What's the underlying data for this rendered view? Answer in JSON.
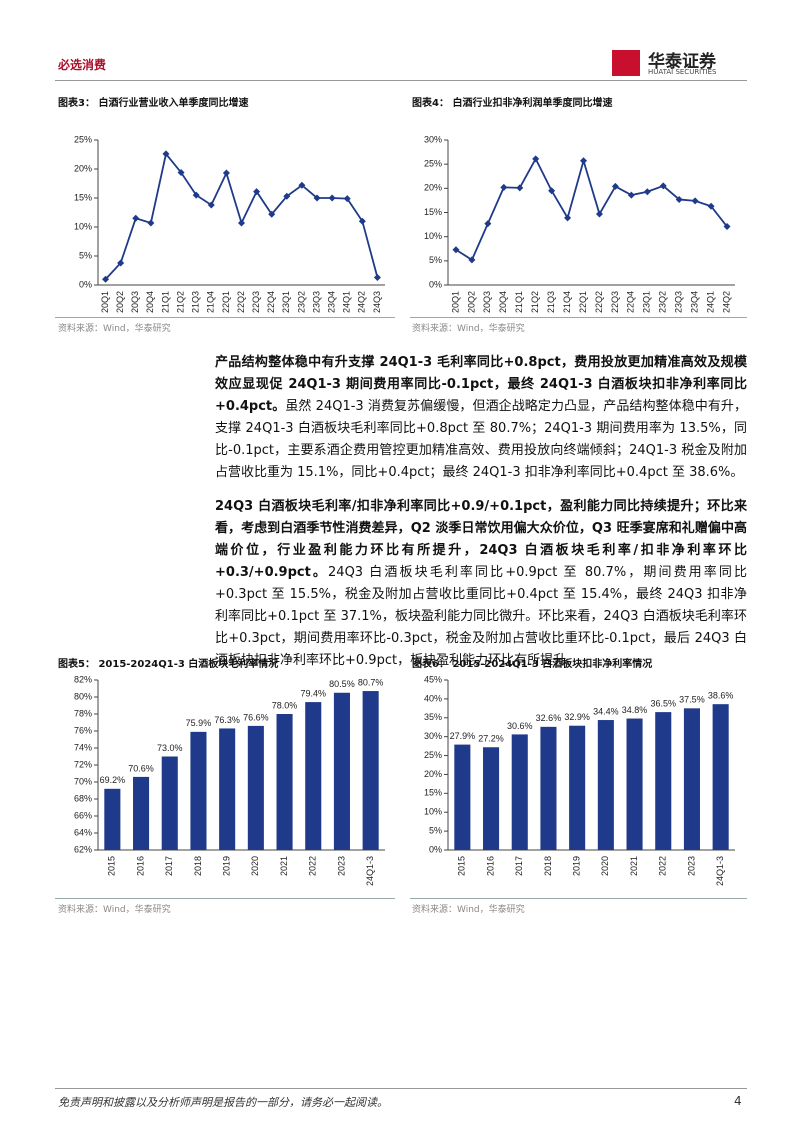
{
  "header": {
    "section": "必选消费",
    "logo_cn": "华泰证券",
    "logo_en": "HUATAI SECURITIES"
  },
  "chart_data": [
    {
      "type": "line",
      "title": "图表3： 白酒行业营业收入单季度同比增速",
      "source": "资料来源：Wind，华泰研究",
      "color": "#1f3a8a",
      "categories": [
        "20Q1",
        "20Q2",
        "20Q3",
        "20Q4",
        "21Q1",
        "21Q2",
        "21Q3",
        "21Q4",
        "22Q1",
        "22Q2",
        "22Q3",
        "22Q4",
        "23Q1",
        "23Q2",
        "23Q3",
        "23Q4",
        "24Q1",
        "24Q2",
        "24Q3"
      ],
      "values": [
        1.0,
        3.8,
        11.5,
        10.7,
        22.6,
        19.4,
        15.5,
        13.8,
        19.3,
        10.7,
        16.1,
        12.2,
        15.3,
        17.2,
        15.0,
        15.0,
        14.9,
        11.0,
        1.3
      ],
      "ylim": [
        0,
        25
      ],
      "yticks": [
        {
          "value": 0,
          "label": "0%"
        },
        {
          "value": 5,
          "label": "5%"
        },
        {
          "value": 10,
          "label": "10%"
        },
        {
          "value": 15,
          "label": "15%"
        },
        {
          "value": 20,
          "label": "20%"
        },
        {
          "value": 25,
          "label": "25%"
        }
      ]
    },
    {
      "type": "line",
      "title": "图表4： 白酒行业扣非净利润单季度同比增速",
      "source": "资料来源：Wind，华泰研究",
      "color": "#1f3a8a",
      "categories": [
        "20Q1",
        "20Q2",
        "20Q3",
        "20Q4",
        "21Q1",
        "21Q2",
        "21Q3",
        "21Q4",
        "22Q1",
        "22Q2",
        "22Q3",
        "22Q4",
        "23Q1",
        "23Q2",
        "23Q3",
        "23Q4",
        "24Q1",
        "24Q2"
      ],
      "values": [
        7.3,
        5.2,
        12.7,
        20.2,
        20.1,
        26.1,
        19.5,
        13.9,
        25.7,
        14.7,
        20.4,
        18.6,
        19.3,
        20.5,
        17.7,
        17.4,
        16.3,
        12.1
      ],
      "ylim": [
        0,
        30
      ],
      "yticks": [
        {
          "value": 0,
          "label": "0%"
        },
        {
          "value": 5,
          "label": "5%"
        },
        {
          "value": 10,
          "label": "10%"
        },
        {
          "value": 15,
          "label": "15%"
        },
        {
          "value": 20,
          "label": "20%"
        },
        {
          "value": 25,
          "label": "25%"
        },
        {
          "value": 30,
          "label": "30%"
        }
      ]
    },
    {
      "type": "bar",
      "title": "图表5： 2015-2024Q1-3 白酒板块毛利率情况",
      "source": "资料来源：Wind，华泰研究",
      "color": "#1f3a8a",
      "categories": [
        "2015",
        "2016",
        "2017",
        "2018",
        "2019",
        "2020",
        "2021",
        "2022",
        "2023",
        "24Q1-3"
      ],
      "values": [
        69.2,
        70.6,
        73.0,
        75.9,
        76.3,
        76.6,
        78.0,
        79.4,
        80.5,
        80.7
      ],
      "value_labels": [
        "69.2%",
        "70.6%",
        "73.0%",
        "75.9%",
        "76.3%",
        "76.6%",
        "78.0%",
        "79.4%",
        "80.5%",
        "80.7%"
      ],
      "ylim": [
        62,
        82
      ],
      "yticks": [
        {
          "value": 62,
          "label": "62%"
        },
        {
          "value": 64,
          "label": "64%"
        },
        {
          "value": 66,
          "label": "66%"
        },
        {
          "value": 68,
          "label": "68%"
        },
        {
          "value": 70,
          "label": "70%"
        },
        {
          "value": 72,
          "label": "72%"
        },
        {
          "value": 74,
          "label": "74%"
        },
        {
          "value": 76,
          "label": "76%"
        },
        {
          "value": 78,
          "label": "78%"
        },
        {
          "value": 80,
          "label": "80%"
        },
        {
          "value": 82,
          "label": "82%"
        }
      ]
    },
    {
      "type": "bar",
      "title": "图表6： 2015-2024Q1-3 白酒板块扣非净利率情况",
      "source": "资料来源：Wind，华泰研究",
      "color": "#1f3a8a",
      "categories": [
        "2015",
        "2016",
        "2017",
        "2018",
        "2019",
        "2020",
        "2021",
        "2022",
        "2023",
        "24Q1-3"
      ],
      "values": [
        27.9,
        27.2,
        30.6,
        32.6,
        32.9,
        34.4,
        34.8,
        36.5,
        37.5,
        38.6
      ],
      "value_labels": [
        "27.9%",
        "27.2%",
        "30.6%",
        "32.6%",
        "32.9%",
        "34.4%",
        "34.8%",
        "36.5%",
        "37.5%",
        "38.6%"
      ],
      "ylim": [
        0,
        45
      ],
      "yticks": [
        {
          "value": 0,
          "label": "0%"
        },
        {
          "value": 5,
          "label": "5%"
        },
        {
          "value": 10,
          "label": "10%"
        },
        {
          "value": 15,
          "label": "15%"
        },
        {
          "value": 20,
          "label": "20%"
        },
        {
          "value": 25,
          "label": "25%"
        },
        {
          "value": 30,
          "label": "30%"
        },
        {
          "value": 35,
          "label": "35%"
        },
        {
          "value": 40,
          "label": "40%"
        },
        {
          "value": 45,
          "label": "45%"
        }
      ]
    }
  ],
  "paragraphs": [
    {
      "bold": "产品结构整体稳中有升支撑 24Q1-3 毛利率同比+0.8pct，费用投放更加精准高效及规模效应显现促 24Q1-3 期间费用率同比-0.1pct，最终 24Q1-3 白酒板块扣非净利率同比+0.4pct。",
      "text": "虽然 24Q1-3 消费复苏偏缓慢，但酒企战略定力凸显，产品结构整体稳中有升，支撑 24Q1-3 白酒板块毛利率同比+0.8pct 至 80.7%；24Q1-3 期间费用率为 13.5%，同比-0.1pct，主要系酒企费用管控更加精准高效、费用投放向终端倾斜；24Q1-3 税金及附加占营收比重为 15.1%，同比+0.4pct；最终 24Q1-3 扣非净利率同比+0.4pct 至 38.6%。"
    },
    {
      "bold": "24Q3 白酒板块毛利率/扣非净利率同比+0.9/+0.1pct，盈利能力同比持续提升；环比来看，考虑到白酒季节性消费差异，Q2 淡季日常饮用偏大众价位，Q3 旺季宴席和礼赠偏中高端价位，行业盈利能力环比有所提升，24Q3 白酒板块毛利率/扣非净利率环比+0.3/+0.9pct。",
      "text": "24Q3 白酒板块毛利率同比+0.9pct 至 80.7%，期间费用率同比+0.3pct 至 15.5%，税金及附加占营收比重同比+0.4pct 至 15.4%，最终 24Q3 扣非净利率同比+0.1pct 至 37.1%，板块盈利能力同比微升。环比来看，24Q3 白酒板块毛利率环比+0.3pct，期间费用率环比-0.3pct，税金及附加占营收比重环比-0.1pct，最后 24Q3 白酒板块扣非净利率环比+0.9pct，板块盈利能力环比有所提升。"
    }
  ],
  "footer": {
    "disclaimer": "免责声明和披露以及分析师声明是报告的一部分，请务必一起阅读。",
    "page": "4"
  }
}
